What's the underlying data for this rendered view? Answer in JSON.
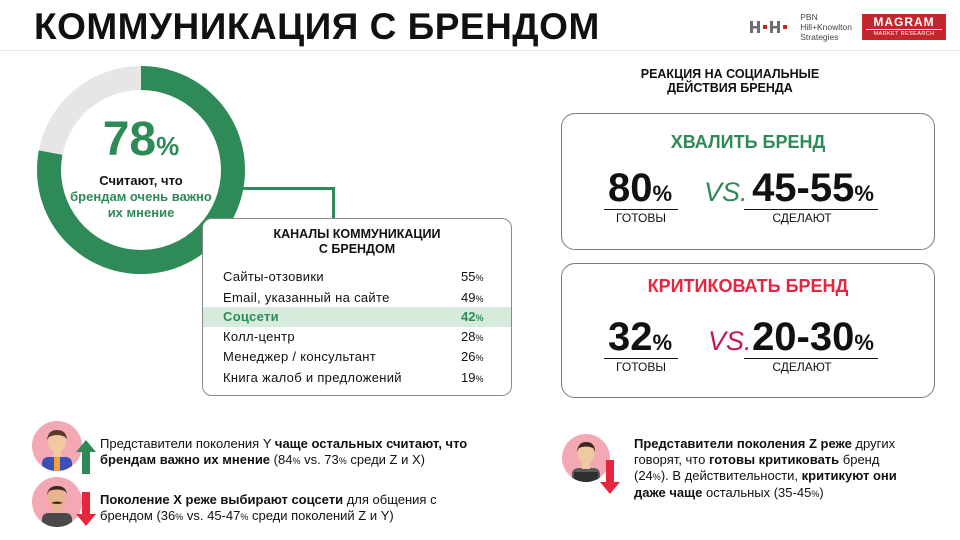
{
  "title": "КОММУНИКАЦИЯ С БРЕНДОМ",
  "logos": {
    "pbn_mark": "HH",
    "pbn_lines": [
      "PBN",
      "Hill+Knowlton",
      "Strategies"
    ],
    "magram_name": "MAGRAM",
    "magram_sub": "MARKET RESEARCH"
  },
  "donut": {
    "value": 78,
    "value_text": "78",
    "percent_sign": "%",
    "caption_line1": "Считают, что",
    "caption_line2": "брендам очень важно их мнение",
    "color_fill": "#2e8b57",
    "color_rest": "#e6e6e6"
  },
  "channels": {
    "title_line1": "КАНАЛЫ КОММУНИКАЦИИ",
    "title_line2": "С БРЕНДОМ",
    "rows": [
      {
        "name": "Сайты-отзовики",
        "value": "55",
        "highlight": false
      },
      {
        "name": "Email, указанный на сайте",
        "value": "49",
        "highlight": false
      },
      {
        "name": "Соцсети",
        "value": "42",
        "highlight": true
      },
      {
        "name": "Колл-центр",
        "value": "28",
        "highlight": false
      },
      {
        "name": "Менеджер / консультант",
        "value": "26",
        "highlight": false
      },
      {
        "name": "Книга жалоб и предложений",
        "value": "19",
        "highlight": false
      }
    ],
    "percent_sign": "%"
  },
  "reaction": {
    "title_line1": "РЕАКЦИЯ НА СОЦИАЛЬНЫЕ",
    "title_line2": "ДЕЙСТВИЯ БРЕНДА",
    "praise": {
      "heading": "ХВАЛИТЬ БРЕНД",
      "heading_color": "#2e8b57",
      "left_value": "80",
      "left_label": "ГОТОВЫ",
      "vs": "VS.",
      "vs_color": "#2e8b57",
      "right_value": "45-55",
      "right_label": "СДЕЛАЮТ"
    },
    "criticize": {
      "heading": "КРИТИКОВАТЬ БРЕНД",
      "heading_color": "#e8253e",
      "left_value": "32",
      "left_label": "ГОТОВЫ",
      "vs": "VS.",
      "vs_color": "#c2185b",
      "right_value": "20-30",
      "right_label": "СДЕЛАЮТ"
    },
    "percent_sign": "%"
  },
  "notes": {
    "gen_y": {
      "t1": "Представители поколения Y ",
      "b1": "чаще остальных считают, что брендам важно их мнение",
      "t2": " (84",
      "p1": "%",
      "t3": " vs. 73",
      "p2": "%",
      "t4": " среди Z и X)"
    },
    "gen_x": {
      "b1": "Поколение X реже выбирают соцсети",
      "t1": " для общения с брендом (36",
      "p1": "%",
      "t2": " vs. 45-47",
      "p2": "%",
      "t3": " среди поколений Z и Y)"
    },
    "gen_z": {
      "b1": "Представители поколения Z реже",
      "t1": " других говорят, что ",
      "b2": "готовы критиковать",
      "t2": " бренд (24",
      "p1": "%",
      "t3": "). В действительности, ",
      "b3": "критикуют они даже чаще",
      "t4": " остальных (35-45",
      "p2": "%",
      "t5": ")"
    }
  }
}
